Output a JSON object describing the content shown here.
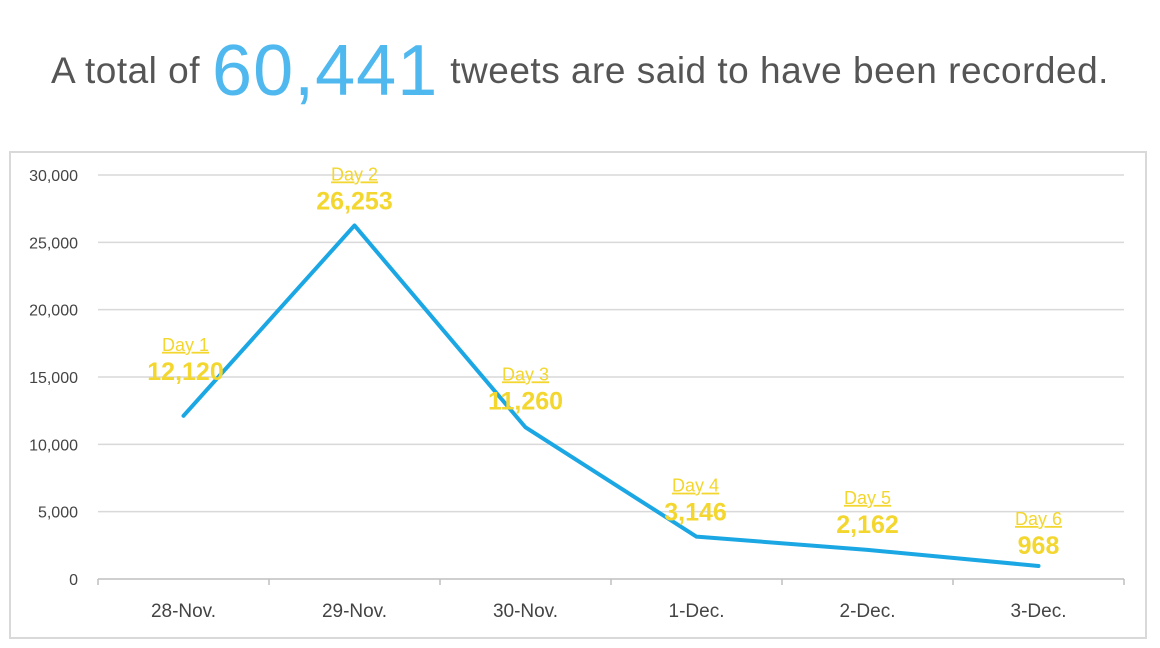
{
  "headline": {
    "lead": "A total of",
    "number": "60,441",
    "tail": "tweets are said to have been recorded."
  },
  "colors": {
    "line": "#1aa7e4",
    "label": "#f3d62e",
    "highlight": "#4fb8ee",
    "grid": "#d9d9d9"
  },
  "chart_data": {
    "type": "line",
    "title": "",
    "xlabel": "",
    "ylabel": "",
    "categories": [
      "28-Nov.",
      "29-Nov.",
      "30-Nov.",
      "1-Dec.",
      "2-Dec.",
      "3-Dec."
    ],
    "values": [
      12120,
      26253,
      11260,
      3146,
      2162,
      968
    ],
    "point_labels": [
      "Day 1",
      "Day 2",
      "Day 3",
      "Day 4",
      "Day 5",
      "Day 6"
    ],
    "value_labels": [
      "12,120",
      "26,253",
      "11,260",
      "3,146",
      "2,162",
      "968"
    ],
    "ylim": [
      0,
      30000
    ],
    "yticks": [
      0,
      5000,
      10000,
      15000,
      20000,
      25000,
      30000
    ],
    "ytick_labels": [
      "0",
      "5,000",
      "10,000",
      "15,000",
      "20,000",
      "25,000",
      "30,000"
    ],
    "grid": true,
    "legend": "none"
  }
}
